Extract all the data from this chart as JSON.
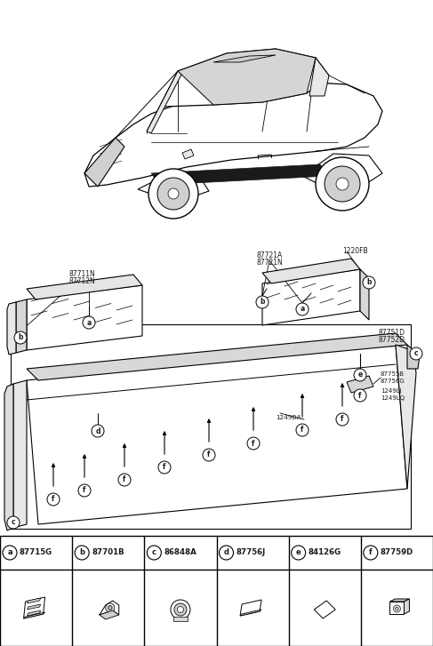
{
  "bg_color": "#ffffff",
  "figsize": [
    4.87,
    7.27
  ],
  "dpi": 100,
  "legend_items": [
    {
      "label": "a",
      "part": "87715G"
    },
    {
      "label": "b",
      "part": "87701B"
    },
    {
      "label": "c",
      "part": "86848A"
    },
    {
      "label": "d",
      "part": "87756J"
    },
    {
      "label": "e",
      "part": "84126G"
    },
    {
      "label": "f",
      "part": "87759D"
    }
  ],
  "line_color": "#000000",
  "text_color": "#1a1a1a",
  "gray_fill": "#e8e8e8",
  "light_gray": "#f2f2f2",
  "mid_gray": "#cccccc"
}
